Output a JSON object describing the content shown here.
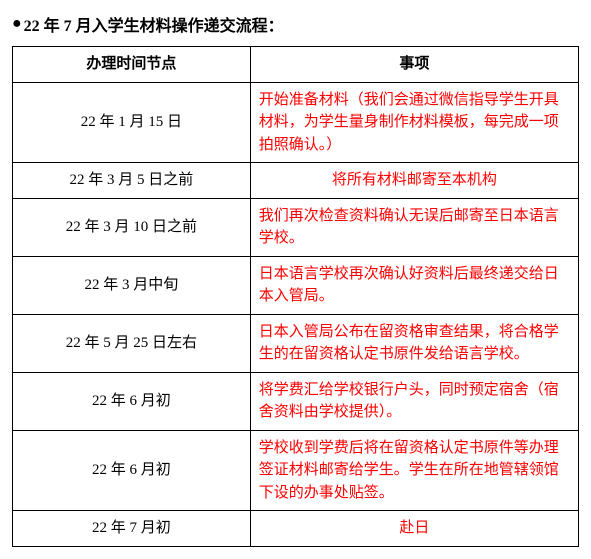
{
  "title": "22 年 7 月入学生材料操作递交流程：",
  "table": {
    "headers": {
      "time": "办理时间节点",
      "item": "事项"
    },
    "rows": [
      {
        "time": "22 年 1 月 15 日",
        "item": "开始准备材料（我们会通过微信指导学生开具材料，为学生量身制作材料模板，每完成一项拍照确认。）",
        "center": false
      },
      {
        "time": "22 年 3 月 5 日之前",
        "item": "将所有材料邮寄至本机构",
        "center": true
      },
      {
        "time": "22 年 3 月 10 日之前",
        "item": "我们再次检查资料确认无误后邮寄至日本语言学校。",
        "center": false
      },
      {
        "time": "22 年 3 月中旬",
        "item": "日本语言学校再次确认好资料后最终递交给日本入管局。",
        "center": false
      },
      {
        "time": "22 年 5 月 25 日左右",
        "item": "日本入管局公布在留资格审查结果，将合格学生的在留资格认定书原件发给语言学校。",
        "center": false
      },
      {
        "time": "22 年 6 月初",
        "item": "将学费汇给学校银行户头，同时预定宿舍（宿舍资料由学校提供）。",
        "center": false
      },
      {
        "time": "22 年 6 月初",
        "item": "学校收到学费后将在留资格认定书原件等办理签证材料邮寄给学生。学生在所在地管辖领馆下设的办事处贴签。",
        "center": false
      },
      {
        "time": "22 年 7 月初",
        "item": "赴日",
        "center": true
      }
    ]
  },
  "colors": {
    "text_black": "#000000",
    "text_red": "#ff0000",
    "border": "#000000",
    "background": "#ffffff"
  },
  "fonts": {
    "family": "SimSun",
    "title_size": 16,
    "cell_size": 15
  }
}
